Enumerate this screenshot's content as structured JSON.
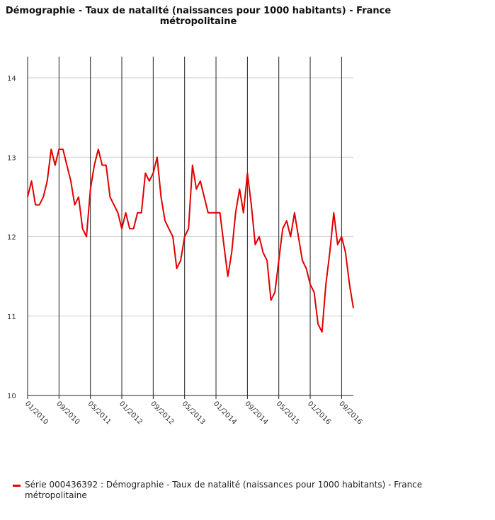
{
  "chart_data": {
    "type": "line",
    "title": "Démographie - Taux de natalité (naissances pour 1000 habitants) - France métropolitaine",
    "title_lines": [
      "Démographie - Taux de natalité (naissances pour 1000 habitants) - France",
      "métropolitaine"
    ],
    "xlabel": "",
    "ylabel": "",
    "ylim": [
      10,
      14
    ],
    "yticks": [
      10,
      11,
      12,
      13,
      14
    ],
    "xticks": [
      "01/2010",
      "09/2010",
      "05/2011",
      "01/2012",
      "09/2012",
      "05/2013",
      "01/2014",
      "09/2014",
      "05/2015",
      "01/2016",
      "09/2016"
    ],
    "grid": true,
    "legend_position": "bottom-left",
    "series": [
      {
        "name": "Série 000436392 : Démographie - Taux de natalité (naissances pour 1000 habitants) - France métropolitaine",
        "color": "#e00000",
        "start": "01/2010",
        "values": [
          12.5,
          12.7,
          12.4,
          12.4,
          12.5,
          12.7,
          13.1,
          12.9,
          13.1,
          13.1,
          12.9,
          12.7,
          12.4,
          12.5,
          12.1,
          12.0,
          12.6,
          12.9,
          13.1,
          12.9,
          12.9,
          12.5,
          12.4,
          12.3,
          12.1,
          12.3,
          12.1,
          12.1,
          12.3,
          12.3,
          12.8,
          12.7,
          12.8,
          13.0,
          12.5,
          12.2,
          12.1,
          12.0,
          11.6,
          11.7,
          12.0,
          12.1,
          12.9,
          12.6,
          12.7,
          12.5,
          12.3,
          12.3,
          12.3,
          12.3,
          11.9,
          11.5,
          11.8,
          12.3,
          12.6,
          12.3,
          12.8,
          12.4,
          11.9,
          12.0,
          11.8,
          11.7,
          11.2,
          11.3,
          11.7,
          12.1,
          12.2,
          12.0,
          12.3,
          12.0,
          11.7,
          11.6,
          11.4,
          11.3,
          10.9,
          10.8,
          11.4,
          11.8,
          12.3,
          11.9,
          12.0,
          11.8,
          11.4,
          11.1
        ]
      }
    ]
  }
}
